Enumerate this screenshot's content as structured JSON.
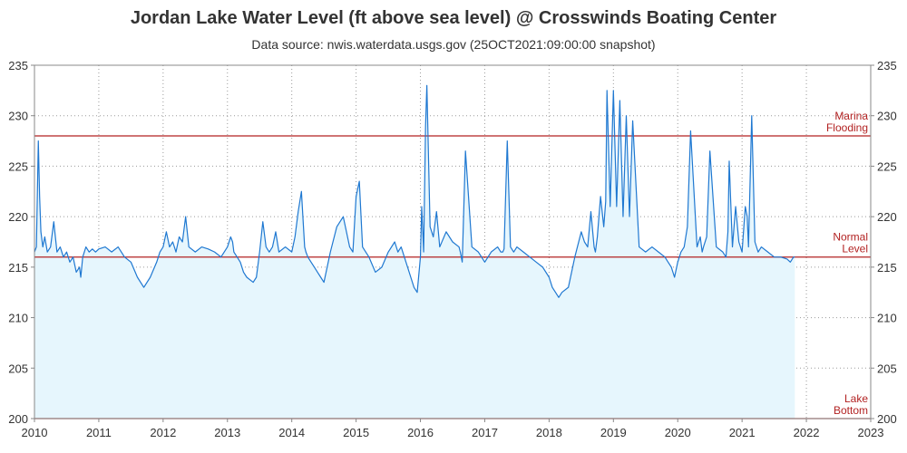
{
  "title": "Jordan Lake Water Level (ft above sea level) @ Crosswinds Boating Center",
  "subtitle": "Data source: nwis.waterdata.usgs.gov (25OCT2021:09:00:00 snapshot)",
  "colors": {
    "series": "#1f78d1",
    "fill": "#e6f6fd",
    "reference_line": "#b22222",
    "grid": "#9a9a9a",
    "axis": "#888888",
    "text": "#333333"
  },
  "chart_data": {
    "type": "area",
    "title": "Jordan Lake Water Level (ft above sea level) @ Crosswinds Boating Center",
    "subtitle": "Data source: nwis.waterdata.usgs.gov (25OCT2021:09:00:00 snapshot)",
    "xlabel": "",
    "ylabel": "",
    "xlim": [
      2010,
      2023
    ],
    "ylim": [
      200,
      235
    ],
    "x_ticks": [
      "2010",
      "2011",
      "2012",
      "2013",
      "2014",
      "2015",
      "2016",
      "2017",
      "2018",
      "2019",
      "2020",
      "2021",
      "2022",
      "2023"
    ],
    "y_ticks": [
      "200",
      "205",
      "210",
      "215",
      "220",
      "225",
      "230",
      "235"
    ],
    "grid": true,
    "y_axis_right_mirror": true,
    "reference_lines": [
      {
        "y": 228,
        "label_lines": [
          "Marina",
          "Flooding"
        ]
      },
      {
        "y": 216,
        "label_lines": [
          "Normal",
          "Level"
        ]
      },
      {
        "y": 200,
        "label_lines": [
          "Lake",
          "Bottom"
        ]
      }
    ],
    "series": [
      {
        "x": [
          2010.0,
          2010.03,
          2010.06,
          2010.08,
          2010.1,
          2010.13,
          2010.16,
          2010.2,
          2010.25,
          2010.3,
          2010.35,
          2010.4,
          2010.45,
          2010.5,
          2010.55,
          2010.6,
          2010.65,
          2010.7,
          2010.72,
          2010.75,
          2010.8,
          2010.85,
          2010.9,
          2010.95,
          2011.0,
          2011.1,
          2011.2,
          2011.3,
          2011.4,
          2011.5,
          2011.6,
          2011.7,
          2011.8,
          2011.9,
          2011.95,
          2012.0,
          2012.05,
          2012.1,
          2012.15,
          2012.2,
          2012.25,
          2012.3,
          2012.35,
          2012.4,
          2012.5,
          2012.6,
          2012.7,
          2012.8,
          2012.9,
          2013.0,
          2013.05,
          2013.08,
          2013.1,
          2013.15,
          2013.2,
          2013.25,
          2013.3,
          2013.4,
          2013.45,
          2013.48,
          2013.5,
          2013.55,
          2013.6,
          2013.65,
          2013.7,
          2013.75,
          2013.8,
          2013.9,
          2014.0,
          2014.05,
          2014.1,
          2014.15,
          2014.2,
          2014.22,
          2014.25,
          2014.3,
          2014.35,
          2014.4,
          2014.45,
          2014.5,
          2014.55,
          2014.6,
          2014.7,
          2014.8,
          2014.9,
          2014.95,
          2015.0,
          2015.05,
          2015.1,
          2015.15,
          2015.2,
          2015.3,
          2015.4,
          2015.5,
          2015.6,
          2015.65,
          2015.7,
          2015.75,
          2015.8,
          2015.85,
          2015.9,
          2015.95,
          2016.0,
          2016.02,
          2016.05,
          2016.08,
          2016.1,
          2016.15,
          2016.2,
          2016.25,
          2016.3,
          2016.4,
          2016.5,
          2016.6,
          2016.62,
          2016.65,
          2016.7,
          2016.8,
          2016.9,
          2016.95,
          2017.0,
          2017.1,
          2017.2,
          2017.25,
          2017.28,
          2017.3,
          2017.35,
          2017.4,
          2017.45,
          2017.5,
          2017.6,
          2017.7,
          2017.8,
          2017.9,
          2018.0,
          2018.05,
          2018.1,
          2018.15,
          2018.2,
          2018.3,
          2018.4,
          2018.5,
          2018.55,
          2018.6,
          2018.65,
          2018.7,
          2018.72,
          2018.75,
          2018.8,
          2018.85,
          2018.88,
          2018.9,
          2018.95,
          2019.0,
          2019.05,
          2019.1,
          2019.15,
          2019.2,
          2019.25,
          2019.3,
          2019.4,
          2019.5,
          2019.6,
          2019.7,
          2019.8,
          2019.85,
          2019.9,
          2019.95,
          2020.0,
          2020.05,
          2020.1,
          2020.15,
          2020.2,
          2020.3,
          2020.35,
          2020.38,
          2020.4,
          2020.45,
          2020.5,
          2020.6,
          2020.7,
          2020.75,
          2020.78,
          2020.8,
          2020.85,
          2020.9,
          2020.95,
          2021.0,
          2021.05,
          2021.08,
          2021.1,
          2021.15,
          2021.2,
          2021.25,
          2021.3,
          2021.4,
          2021.5,
          2021.6,
          2021.7,
          2021.75,
          2021.8,
          2021.82
        ],
        "y": [
          216.5,
          217.0,
          227.5,
          222.0,
          218.5,
          217.0,
          218.0,
          216.5,
          217.0,
          219.5,
          216.5,
          217.0,
          216.0,
          216.5,
          215.5,
          216.0,
          214.5,
          215.0,
          214.0,
          216.0,
          217.0,
          216.5,
          216.8,
          216.5,
          216.8,
          217.0,
          216.5,
          217.0,
          216.0,
          215.5,
          214.0,
          213.0,
          214.0,
          215.5,
          216.5,
          217.0,
          218.5,
          217.0,
          217.5,
          216.5,
          218.0,
          217.5,
          220.0,
          217.0,
          216.5,
          217.0,
          216.8,
          216.5,
          216.0,
          217.0,
          218.0,
          217.5,
          216.5,
          216.0,
          215.5,
          214.5,
          214.0,
          213.5,
          214.0,
          215.5,
          216.5,
          219.5,
          217.0,
          216.5,
          217.0,
          218.5,
          216.5,
          217.0,
          216.5,
          218.0,
          220.5,
          222.5,
          217.0,
          216.5,
          216.0,
          215.5,
          215.0,
          214.5,
          214.0,
          213.5,
          215.0,
          216.5,
          219.0,
          220.0,
          217.0,
          216.5,
          222.0,
          223.5,
          217.0,
          216.5,
          216.0,
          214.5,
          215.0,
          216.5,
          217.5,
          216.5,
          217.0,
          216.0,
          215.0,
          214.0,
          213.0,
          212.5,
          216.0,
          221.0,
          216.5,
          229.0,
          233.0,
          219.0,
          218.0,
          220.5,
          217.0,
          218.5,
          217.5,
          217.0,
          216.5,
          215.5,
          226.5,
          217.0,
          216.5,
          216.0,
          215.5,
          216.5,
          217.0,
          216.5,
          216.5,
          216.8,
          227.5,
          217.0,
          216.5,
          217.0,
          216.5,
          216.0,
          215.5,
          215.0,
          214.0,
          213.0,
          212.5,
          212.0,
          212.5,
          213.0,
          216.0,
          218.5,
          217.5,
          217.0,
          220.5,
          217.0,
          216.5,
          218.0,
          222.0,
          219.0,
          221.5,
          232.5,
          221.0,
          232.5,
          221.0,
          231.5,
          220.0,
          230.0,
          220.0,
          229.5,
          217.0,
          216.5,
          217.0,
          216.5,
          216.0,
          215.5,
          215.0,
          214.0,
          215.5,
          216.5,
          217.0,
          219.0,
          228.5,
          217.0,
          218.0,
          216.5,
          217.0,
          218.0,
          226.5,
          217.0,
          216.5,
          216.0,
          218.5,
          225.5,
          217.0,
          221.0,
          217.5,
          216.5,
          221.0,
          220.0,
          217.0,
          230.0,
          217.5,
          216.5,
          217.0,
          216.5,
          216.0,
          216.0,
          215.8,
          215.5,
          216.0,
          216.0
        ]
      }
    ]
  }
}
